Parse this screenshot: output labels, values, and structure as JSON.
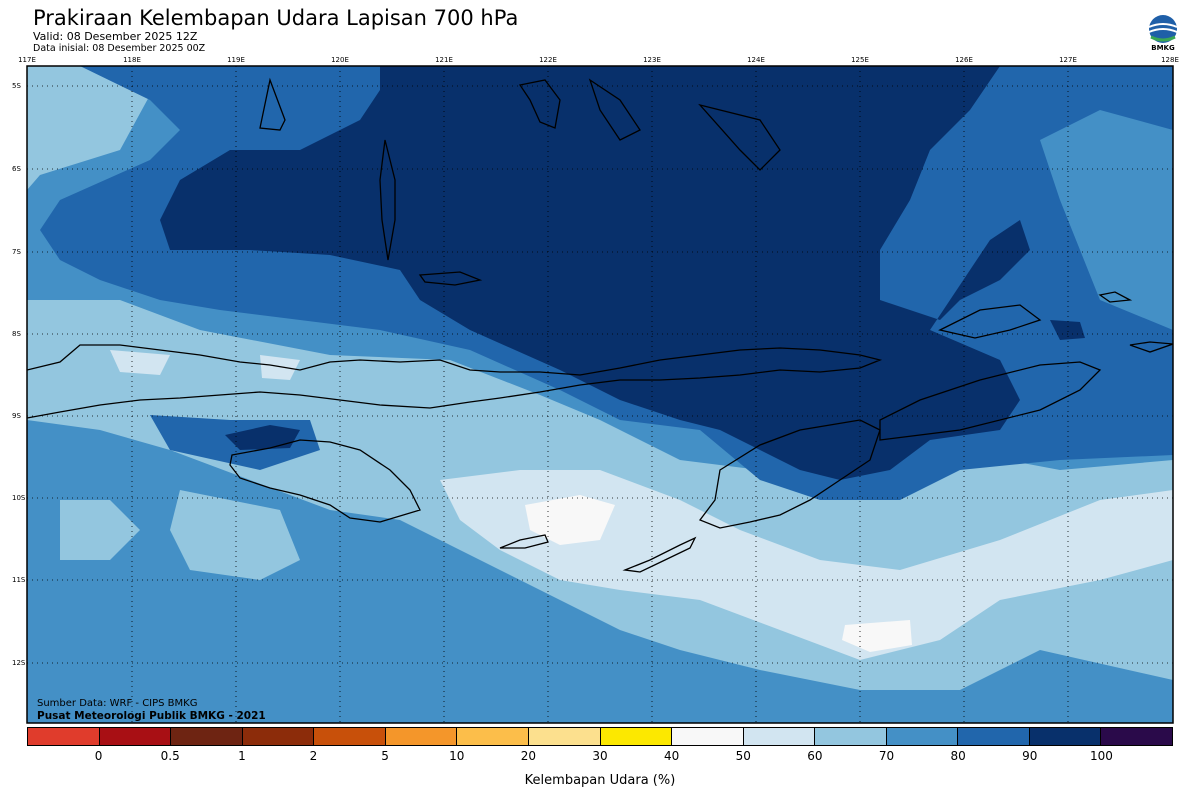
{
  "header": {
    "title": "Prakiraan Kelembapan Udara Lapisan 700 hPa",
    "valid": "Valid: 08 Desember 2025 12Z",
    "initial": "Data inisial: 08 Desember 2025 00Z"
  },
  "logo": {
    "text": "BMKG",
    "icon": "bmkg-logo-icon"
  },
  "map": {
    "lon_labels": [
      "117E",
      "118E",
      "119E",
      "120E",
      "121E",
      "122E",
      "123E",
      "124E",
      "125E",
      "126E",
      "127E",
      "128E"
    ],
    "lat_labels": [
      "5S",
      "6S",
      "7S",
      "8S",
      "9S",
      "10S",
      "11S",
      "12S"
    ],
    "grid": true
  },
  "footer": {
    "source": "Sumber Data: WRF - CIPS BMKG",
    "org": "Pusat Meteorologi Publik BMKG - 2021"
  },
  "colorbar": {
    "label": "Kelembapan Udara (%)",
    "ticks": [
      "0",
      "0.5",
      "1",
      "2",
      "5",
      "10",
      "20",
      "30",
      "40",
      "50",
      "60",
      "70",
      "80",
      "90",
      "100"
    ],
    "colors": [
      "#e03c2c",
      "#a80f14",
      "#6e2412",
      "#8c2c0a",
      "#c8500a",
      "#f4962a",
      "#fcbe4a",
      "#fce08e",
      "#fce800",
      "#f8f8f8",
      "#d2e5f1",
      "#93c6df",
      "#4490c6",
      "#2166ac",
      "#08306b",
      "#2a0a4a"
    ]
  },
  "legend_colors": {
    "level_50_60": "#f8f8f8",
    "level_60_70": "#d2e5f1",
    "level_70_80": "#93c6df",
    "level_80_90": "#4490c6",
    "level_90_100": "#2166ac",
    "level_100": "#08306b"
  }
}
